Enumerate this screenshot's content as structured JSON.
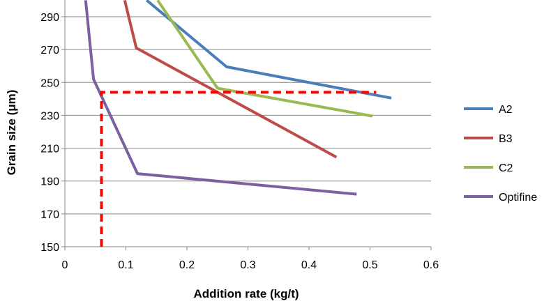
{
  "chart_data": {
    "type": "line",
    "title": "",
    "xlabel": "Addition rate (kg/t)",
    "ylabel": "Grain size (μm)",
    "xlim": [
      0,
      0.6
    ],
    "ylim": [
      150,
      298
    ],
    "xticks": [
      0,
      0.1,
      0.2,
      0.3,
      0.4,
      0.5,
      0.6
    ],
    "xtick_labels": [
      "0",
      "0.1",
      "0.2",
      "0.3",
      "0.4",
      "0.5",
      "0.6"
    ],
    "yticks": [
      150,
      170,
      190,
      210,
      230,
      250,
      270,
      290
    ],
    "ytick_labels": [
      "150",
      "170",
      "190",
      "210",
      "230",
      "250",
      "270",
      "290"
    ],
    "grid": "horizontal",
    "legend_position": "right",
    "series": [
      {
        "name": "A2",
        "color": "#4a7ebb",
        "x": [
          0.134,
          0.265,
          0.535
        ],
        "y": [
          300,
          259.5,
          240.5
        ]
      },
      {
        "name": "B3",
        "color": "#be4b48",
        "x": [
          0.098,
          0.117,
          0.445
        ],
        "y": [
          300,
          271,
          204.5
        ]
      },
      {
        "name": "C2",
        "color": "#98b954",
        "x": [
          0.152,
          0.25,
          0.504
        ],
        "y": [
          300,
          246.5,
          229.5
        ]
      },
      {
        "name": "Optifine",
        "color": "#7d60a0",
        "x": [
          0.034,
          0.047,
          0.119,
          0.478
        ],
        "y": [
          300,
          252,
          194.5,
          182
        ]
      }
    ],
    "annotations": [
      {
        "type": "dashed-guide",
        "color": "#ff0000",
        "points": [
          [
            0.06,
            150
          ],
          [
            0.06,
            244
          ],
          [
            0.51,
            244
          ]
        ]
      }
    ]
  }
}
